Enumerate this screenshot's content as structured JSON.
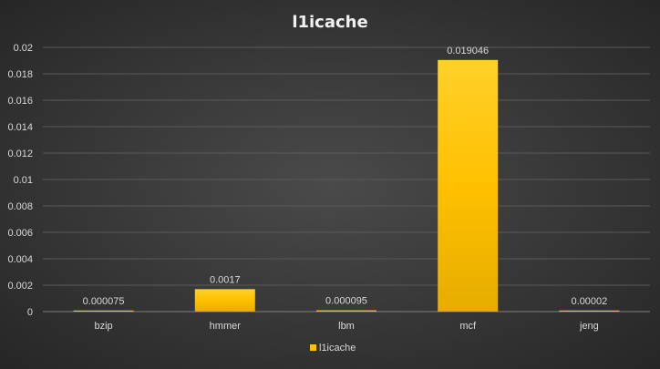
{
  "chart_data": {
    "type": "bar",
    "title": "l1icache",
    "xlabel": "",
    "ylabel": "",
    "categories": [
      "bzip",
      "hmmer",
      "lbm",
      "mcf",
      "jeng"
    ],
    "series": [
      {
        "name": "l1icache",
        "values": [
          7.5e-05,
          0.0017,
          9.5e-05,
          0.019046,
          2e-05
        ],
        "labels": [
          "0.000075",
          "0.0017",
          "0.000095",
          "0.019046",
          "0.00002"
        ]
      }
    ],
    "ylim": [
      0,
      0.02
    ],
    "yticks": [
      0,
      0.002,
      0.004,
      0.006,
      0.008,
      0.01,
      0.012,
      0.014,
      0.016,
      0.018,
      0.02
    ],
    "ytick_labels": [
      "0",
      "0.002",
      "0.004",
      "0.006",
      "0.008",
      "0.01",
      "0.012",
      "0.014",
      "0.016",
      "0.018",
      "0.02"
    ],
    "grid": true,
    "legend_position": "bottom",
    "colors": {
      "bar_top": "#ffd12a",
      "bar_mid": "#ffc000",
      "bar_bottom": "#e6ad00",
      "gridline": "#5a5a5a",
      "axis": "#7f7f7f",
      "text": "#d9d9d9",
      "title": "#f2f2f2"
    }
  }
}
